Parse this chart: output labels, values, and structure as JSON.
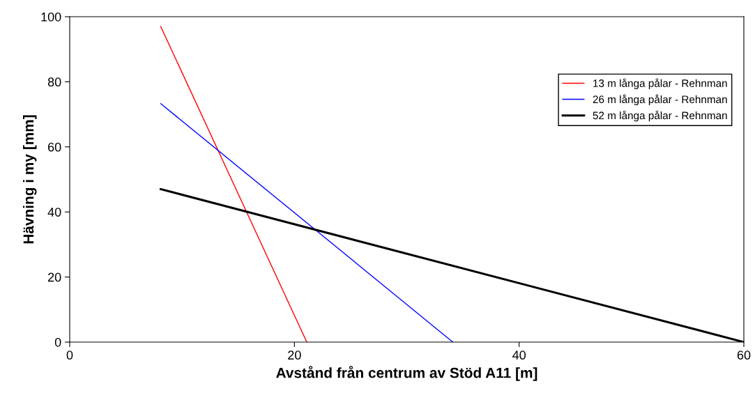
{
  "chart_data": {
    "type": "line",
    "xlabel": "Avstånd från centrum av Stöd A11 [m]",
    "ylabel": "Hävning i my [mm]",
    "xlim": [
      0,
      60
    ],
    "xticks": [
      0,
      20,
      40,
      60
    ],
    "ylim": [
      0,
      100
    ],
    "yticks": [
      0,
      20,
      40,
      60,
      80,
      100
    ],
    "grid": false,
    "legend": "top right",
    "marker": "none",
    "line_style": "solid",
    "series": [
      {
        "name": "13 m långa pålar - Rehnman",
        "color": "#ff0000",
        "x": [
          8.1,
          21.1
        ],
        "values": [
          97,
          0
        ]
      },
      {
        "name": "26 m långa pålar - Rehnman",
        "color": "#0000ff",
        "x": [
          8.1,
          34.1
        ],
        "values": [
          73.3,
          0
        ]
      },
      {
        "name": "52 m långa pålar - Rehnman",
        "color": "#000000",
        "x": [
          8.1,
          60
        ],
        "values": [
          47,
          0
        ]
      }
    ]
  }
}
